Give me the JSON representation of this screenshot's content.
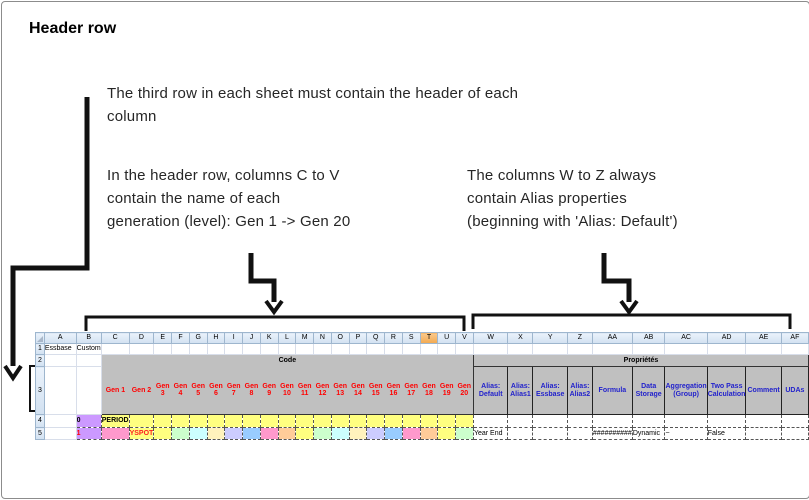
{
  "title": "Header row",
  "annotations": {
    "para_third_row": {
      "lines": [
        "The third row in each sheet must contain the header of each",
        "column"
      ]
    },
    "para_columns_c_v": {
      "lines": [
        "In the header row, columns C to V",
        "contain the name of each",
        "generation (level): Gen 1 -> Gen 20"
      ]
    },
    "para_columns_w_z": {
      "lines": [
        "The columns W to Z always",
        "contain Alias properties",
        "(beginning with 'Alias: Default')"
      ]
    }
  },
  "sheet": {
    "column_letters": [
      "A",
      "B",
      "C",
      "D",
      "E",
      "F",
      "G",
      "H",
      "I",
      "J",
      "K",
      "L",
      "M",
      "N",
      "O",
      "P",
      "Q",
      "R",
      "S",
      "T",
      "U",
      "V",
      "W",
      "X",
      "Y",
      "Z",
      "AA",
      "AB",
      "AC",
      "AD",
      "AE",
      "AF"
    ],
    "highlighted_column": "T",
    "row_numbers": [
      "1",
      "2",
      "3",
      "4",
      "5"
    ],
    "cells": {
      "a1": "Essbase",
      "b1": "Custom",
      "code_band": "Code",
      "properties_band": "Propriétés",
      "generation_headers": [
        "Gen 1",
        "Gen 2",
        "Gen 3",
        "Gen 4",
        "Gen 5",
        "Gen 6",
        "Gen 7",
        "Gen 8",
        "Gen 9",
        "Gen 10",
        "Gen 11",
        "Gen 12",
        "Gen 13",
        "Gen 14",
        "Gen 15",
        "Gen 16",
        "Gen 17",
        "Gen 18",
        "Gen 19",
        "Gen 20"
      ],
      "property_headers": [
        "Alias: Default",
        "Alias: Alias1",
        "Alias: Essbase",
        "Alias: Alias2",
        "Formula",
        "Data Storage",
        "Aggregation (Group)",
        "Two Pass Calculation",
        "Comment",
        "UDAs"
      ],
      "b4": "0",
      "c4": "PERIOD",
      "b5": "1",
      "d5": "YSPOT",
      "row5_properties": [
        "Year End",
        "",
        "",
        "",
        "##########",
        "Dynamic",
        "~",
        "False",
        "",
        ""
      ]
    },
    "row4_fill": "yellow",
    "row5_fill_sequence": [
      "pink",
      "yellow",
      "yellow",
      "green",
      "cyan",
      "cream",
      "lavender",
      "blue",
      "pink",
      "orange",
      "yellow",
      "green",
      "cyan",
      "cream",
      "lavender",
      "blue",
      "pink",
      "orange",
      "yellow",
      "green"
    ],
    "colors": {
      "band_bg": "#C0C0C0",
      "gen_text": "#FF0000",
      "prop_text": "#2222CC",
      "level_bg": "#CC99FF",
      "level1_text": "#FF0000",
      "member_text": "#FF2020",
      "fills": {
        "yellow": "#FFFF80",
        "green": "#CCFFCC",
        "cyan": "#CCFFFF",
        "cream": "#FFF2BD",
        "lavender": "#CCCCFF",
        "blue": "#99CCFF",
        "pink": "#FF99CC",
        "orange": "#FFCC99"
      }
    }
  }
}
